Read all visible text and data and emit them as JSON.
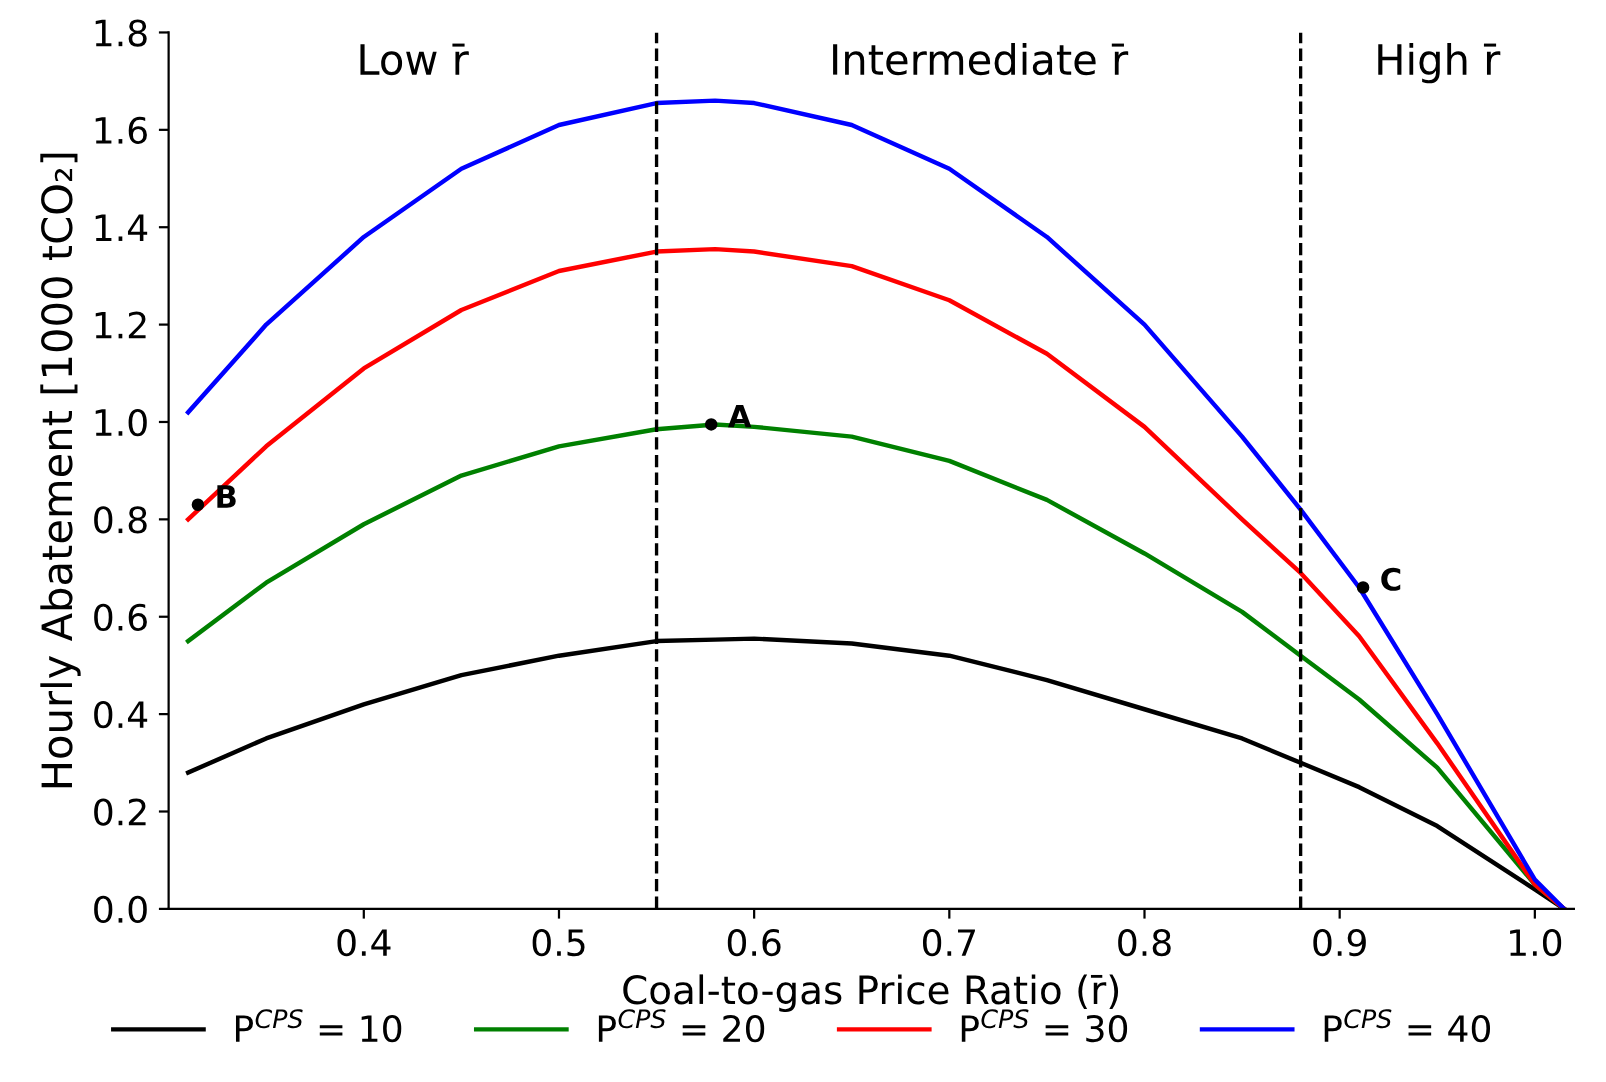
{
  "chart_data": {
    "type": "line",
    "xlabel": "Coal-to-gas Price Ratio (r̄)",
    "ylabel": "Hourly Abatement [1000 tCO₂]",
    "x": [
      0.31,
      0.35,
      0.4,
      0.45,
      0.5,
      0.55,
      0.58,
      0.6,
      0.65,
      0.7,
      0.75,
      0.8,
      0.85,
      0.88,
      0.91,
      0.95,
      1.0,
      1.015
    ],
    "series": [
      {
        "name": "P$^{CPS}$ = 10",
        "color": "#000000",
        "values": [
          0.28,
          0.35,
          0.42,
          0.48,
          0.52,
          0.55,
          0.553,
          0.555,
          0.545,
          0.52,
          0.47,
          0.41,
          0.35,
          0.3,
          0.25,
          0.17,
          0.04,
          0.0
        ]
      },
      {
        "name": "P$^{CPS}$ = 20",
        "color": "#008000",
        "values": [
          0.55,
          0.67,
          0.79,
          0.89,
          0.95,
          0.985,
          0.995,
          0.99,
          0.97,
          0.92,
          0.84,
          0.73,
          0.61,
          0.52,
          0.43,
          0.29,
          0.05,
          0.0
        ]
      },
      {
        "name": "P$^{CPS}$ = 30",
        "color": "#ff0000",
        "values": [
          0.8,
          0.95,
          1.11,
          1.23,
          1.31,
          1.35,
          1.355,
          1.35,
          1.32,
          1.25,
          1.14,
          0.99,
          0.8,
          0.69,
          0.56,
          0.34,
          0.05,
          0.0
        ]
      },
      {
        "name": "P$^{CPS}$ = 40",
        "color": "#0000ff",
        "values": [
          1.02,
          1.2,
          1.38,
          1.52,
          1.61,
          1.655,
          1.66,
          1.655,
          1.61,
          1.52,
          1.38,
          1.2,
          0.97,
          0.82,
          0.66,
          0.4,
          0.06,
          0.0
        ]
      }
    ],
    "xlim": [
      0.3,
      1.02
    ],
    "ylim": [
      0.0,
      1.8
    ],
    "xticks": [
      0.4,
      0.5,
      0.6,
      0.7,
      0.8,
      0.9,
      {
        "value": 1,
        "label": "1.0"
      }
    ],
    "yticks": [
      {
        "value": 0,
        "label": "0.0"
      },
      0.2,
      0.4,
      0.6,
      0.8,
      {
        "value": 1,
        "label": "1.0"
      },
      1.2,
      1.4,
      1.6,
      1.8
    ],
    "ref_lines": [
      {
        "axis": "x",
        "value": 0.55,
        "color": "#000000",
        "line_style": "dashed"
      },
      {
        "axis": "x",
        "value": 0.88,
        "color": "#000000",
        "line_style": "dashed"
      }
    ],
    "annotations": [
      "Low r̄",
      "Intermediate r̄",
      "High r̄",
      {
        "text": "A",
        "x": 0.578,
        "y": 0.995
      },
      {
        "text": "B",
        "x": 0.315,
        "y": 0.83
      },
      {
        "text": "C",
        "x": 0.912,
        "y": 0.66
      }
    ],
    "grid": false,
    "legend": "bottom",
    "marker": "none",
    "line_style": "solid"
  }
}
